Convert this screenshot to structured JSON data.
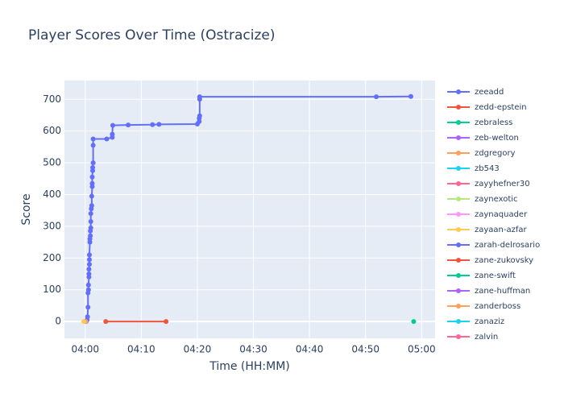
{
  "chart_data": {
    "type": "line",
    "title": "Player Scores Over Time (Ostracize)",
    "x_label": "Time (HH:MM)",
    "y_label": "Score",
    "xlim": [
      "03:56:18",
      "05:02:24"
    ],
    "xticks": [
      "04:00",
      "04:10",
      "04:20",
      "04:30",
      "04:40",
      "04:50",
      "05:00"
    ],
    "ylim": [
      -53,
      759
    ],
    "yticks": [
      0,
      100,
      200,
      300,
      400,
      500,
      600,
      700
    ],
    "grid": true,
    "legend": "right",
    "series": [
      {
        "name": "zeeadd",
        "color": "#636efa",
        "x": [
          "04:00:10",
          "04:00:20",
          "04:00:25",
          "04:00:30",
          "04:00:30",
          "04:00:35",
          "04:00:35",
          "04:00:40",
          "04:00:40",
          "04:00:40",
          "04:00:45",
          "04:00:45",
          "04:00:45",
          "04:00:50",
          "04:00:50",
          "04:00:55",
          "04:00:55",
          "04:01:00",
          "04:01:00",
          "04:01:00",
          "04:01:05",
          "04:01:10",
          "04:01:10",
          "04:01:15",
          "04:01:15",
          "04:01:15",
          "04:01:20",
          "04:01:20",
          "04:01:25",
          "04:01:25",
          "04:01:25",
          "04:03:50",
          "04:04:50",
          "04:04:50",
          "04:04:55",
          "04:07:40",
          "04:12:00",
          "04:13:10",
          "04:20:00",
          "04:20:20",
          "04:20:20",
          "04:20:25",
          "04:20:25",
          "04:20:25",
          "04:51:55",
          "04:58:05"
        ],
        "values": [
          0,
          5,
          15,
          45,
          90,
          100,
          115,
          140,
          150,
          165,
          180,
          195,
          210,
          250,
          260,
          270,
          285,
          295,
          315,
          340,
          355,
          365,
          395,
          425,
          435,
          455,
          475,
          485,
          500,
          555,
          575,
          575,
          580,
          590,
          618,
          619,
          620,
          621,
          622,
          630,
          640,
          648,
          700,
          708,
          708,
          709
        ]
      },
      {
        "name": "zedd-epstein",
        "color": "#EF553B",
        "x": [
          "04:03:40",
          "04:14:25"
        ],
        "values": [
          0,
          0
        ]
      },
      {
        "name": "zebraless",
        "color": "#00cc96",
        "x": [
          "04:58:35"
        ],
        "values": [
          0
        ]
      },
      {
        "name": "zeb-welton",
        "color": "#ab63fa",
        "x": [],
        "values": []
      },
      {
        "name": "zdgregory",
        "color": "#FFA15A",
        "x": [
          "04:00:05"
        ],
        "values": [
          0
        ]
      },
      {
        "name": "zb543",
        "color": "#19d3f3",
        "x": [],
        "values": []
      },
      {
        "name": "zayyhefner30",
        "color": "#FF6692",
        "x": [],
        "values": []
      },
      {
        "name": "zaynexotic",
        "color": "#B6E880",
        "x": [],
        "values": []
      },
      {
        "name": "zaynaquader",
        "color": "#FF97FF",
        "x": [],
        "values": []
      },
      {
        "name": "zayaan-azfar",
        "color": "#FECB52",
        "x": [
          "03:59:45"
        ],
        "values": [
          0
        ]
      },
      {
        "name": "zarah-delrosario",
        "color": "#636efa",
        "x": [],
        "values": []
      },
      {
        "name": "zane-zukovsky",
        "color": "#EF553B",
        "x": [],
        "values": []
      },
      {
        "name": "zane-swift",
        "color": "#00cc96",
        "x": [],
        "values": []
      },
      {
        "name": "zane-huffman",
        "color": "#ab63fa",
        "x": [],
        "values": []
      },
      {
        "name": "zanderboss",
        "color": "#FFA15A",
        "x": [],
        "values": []
      },
      {
        "name": "zanaziz",
        "color": "#19d3f3",
        "x": [],
        "values": []
      },
      {
        "name": "zalvin",
        "color": "#FF6692",
        "x": [],
        "values": []
      }
    ]
  }
}
